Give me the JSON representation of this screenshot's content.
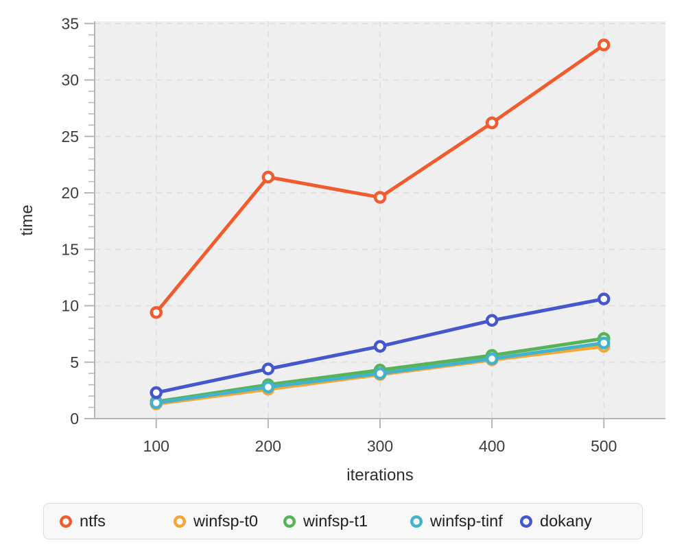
{
  "chart_data": {
    "type": "line",
    "title": "",
    "xlabel": "iterations",
    "ylabel": "time",
    "x": [
      100,
      200,
      300,
      400,
      500
    ],
    "xticks": [
      100,
      200,
      300,
      400,
      500
    ],
    "yticks": [
      0,
      5,
      10,
      15,
      20,
      25,
      30,
      35
    ],
    "y_minor_tick_step": 1,
    "xlim": [
      45,
      555
    ],
    "ylim": [
      0,
      35.2
    ],
    "grid": true,
    "grid_style": "dashed",
    "legend_position": "bottom",
    "marker": "open-circle",
    "colors": {
      "plot_background": "#efefef",
      "gridline": "#dcdcdc",
      "axis": "#b5b5b5",
      "tick_label": "#3d3d3d"
    },
    "series": [
      {
        "name": "ntfs",
        "color": "#f15b2e",
        "values": [
          9.4,
          21.4,
          19.6,
          26.2,
          33.1
        ]
      },
      {
        "name": "winfsp-t0",
        "color": "#f5a733",
        "values": [
          1.3,
          2.6,
          3.9,
          5.2,
          6.4
        ]
      },
      {
        "name": "winfsp-t1",
        "color": "#56b356",
        "values": [
          1.5,
          3.0,
          4.3,
          5.6,
          7.1
        ]
      },
      {
        "name": "winfsp-tinf",
        "color": "#45b2cd",
        "values": [
          1.4,
          2.8,
          4.0,
          5.3,
          6.7
        ]
      },
      {
        "name": "dokany",
        "color": "#4657ce",
        "values": [
          2.3,
          4.4,
          6.4,
          8.7,
          10.6
        ]
      }
    ]
  }
}
